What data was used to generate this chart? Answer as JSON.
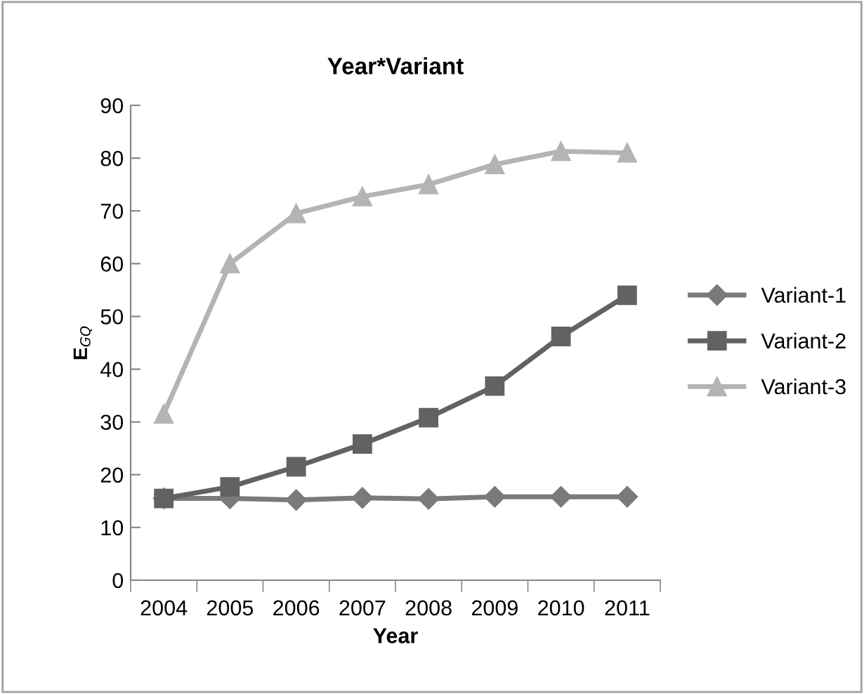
{
  "chart_data": {
    "type": "line",
    "title": "Year*Variant",
    "xlabel": "Year",
    "ylabel": "E$_{GQ}$",
    "categories": [
      "2004",
      "2005",
      "2006",
      "2007",
      "2008",
      "2009",
      "2010",
      "2011"
    ],
    "ylim": [
      0,
      90
    ],
    "yticks": [
      0,
      10,
      20,
      30,
      40,
      50,
      60,
      70,
      80,
      90
    ],
    "grid": false,
    "legend": "right",
    "line_style": "solid",
    "series": [
      {
        "name": "Variant-1",
        "color": "#7a7a7a",
        "marker": "diamond",
        "values": [
          15.5,
          15.5,
          15.2,
          15.6,
          15.4,
          15.8,
          15.8,
          15.8
        ]
      },
      {
        "name": "Variant-2",
        "color": "#626262",
        "marker": "square",
        "values": [
          15.5,
          17.7,
          21.5,
          25.8,
          30.8,
          36.8,
          46.2,
          54
        ]
      },
      {
        "name": "Variant-3",
        "color": "#b4b4b4",
        "marker": "triangle",
        "values": [
          31.5,
          60,
          69.5,
          72.7,
          75,
          78.8,
          81.3,
          81
        ]
      }
    ]
  }
}
